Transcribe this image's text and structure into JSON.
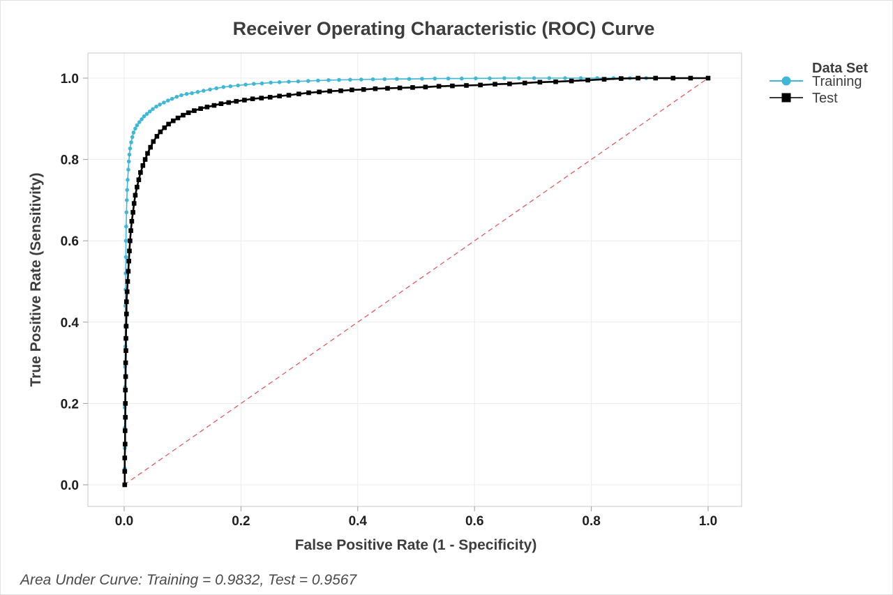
{
  "chart_data": {
    "type": "line",
    "title": "Receiver Operating Characteristic (ROC) Curve",
    "xlabel": "False Positive Rate (1 - Specificity)",
    "ylabel": "True Positive Rate (Sensitivity)",
    "xlim": [
      0,
      1
    ],
    "ylim": [
      0,
      1
    ],
    "grid": true,
    "xticks": {
      "values": [
        0.0,
        0.2,
        0.4,
        0.6,
        0.8,
        1.0
      ],
      "labels": [
        "0.0",
        "0.2",
        "0.4",
        "0.6",
        "0.8",
        "1.0"
      ]
    },
    "yticks": {
      "values": [
        0.0,
        0.2,
        0.4,
        0.6,
        0.8,
        1.0
      ],
      "labels": [
        "0.0",
        "0.2",
        "0.4",
        "0.6",
        "0.8",
        "1.0"
      ]
    },
    "legend": {
      "title": "Data Set",
      "position": "right-top"
    },
    "reference_line": {
      "name": "chance-diagonal",
      "from": [
        0,
        0
      ],
      "to": [
        1,
        1
      ],
      "style": "dashed",
      "color": "#E05C5C"
    },
    "footnote": "Area Under Curve: Training = 0.9832, Test = 0.9567",
    "series": [
      {
        "name": "Training",
        "marker": "circle",
        "color": "#41B7D8",
        "auc": 0.9832,
        "points": [
          [
            0.0005,
            0.0
          ],
          [
            0.001,
            0.04
          ],
          [
            0.001,
            0.09
          ],
          [
            0.001,
            0.14
          ],
          [
            0.001,
            0.19
          ],
          [
            0.0015,
            0.24
          ],
          [
            0.0015,
            0.29
          ],
          [
            0.002,
            0.34
          ],
          [
            0.002,
            0.39
          ],
          [
            0.002,
            0.44
          ],
          [
            0.0025,
            0.48
          ],
          [
            0.0025,
            0.52
          ],
          [
            0.003,
            0.56
          ],
          [
            0.003,
            0.6
          ],
          [
            0.0035,
            0.635
          ],
          [
            0.004,
            0.67
          ],
          [
            0.0045,
            0.7
          ],
          [
            0.005,
            0.725
          ],
          [
            0.006,
            0.75
          ],
          [
            0.007,
            0.775
          ],
          [
            0.008,
            0.795
          ],
          [
            0.009,
            0.812
          ],
          [
            0.01,
            0.827
          ],
          [
            0.012,
            0.842
          ],
          [
            0.014,
            0.855
          ],
          [
            0.016,
            0.866
          ],
          [
            0.019,
            0.876
          ],
          [
            0.022,
            0.884
          ],
          [
            0.026,
            0.892
          ],
          [
            0.03,
            0.899
          ],
          [
            0.034,
            0.906
          ],
          [
            0.039,
            0.912
          ],
          [
            0.044,
            0.918
          ],
          [
            0.049,
            0.924
          ],
          [
            0.055,
            0.93
          ],
          [
            0.061,
            0.935
          ],
          [
            0.068,
            0.94
          ],
          [
            0.075,
            0.945
          ],
          [
            0.082,
            0.949
          ],
          [
            0.09,
            0.954
          ],
          [
            0.098,
            0.958
          ],
          [
            0.107,
            0.961
          ],
          [
            0.116,
            0.963
          ],
          [
            0.126,
            0.966
          ],
          [
            0.136,
            0.969
          ],
          [
            0.147,
            0.972
          ],
          [
            0.158,
            0.975
          ],
          [
            0.17,
            0.978
          ],
          [
            0.182,
            0.98
          ],
          [
            0.195,
            0.982
          ],
          [
            0.208,
            0.984
          ],
          [
            0.222,
            0.986
          ],
          [
            0.236,
            0.987
          ],
          [
            0.251,
            0.989
          ],
          [
            0.266,
            0.99
          ],
          [
            0.282,
            0.991
          ],
          [
            0.298,
            0.992
          ],
          [
            0.315,
            0.993
          ],
          [
            0.332,
            0.994
          ],
          [
            0.35,
            0.995
          ],
          [
            0.368,
            0.9955
          ],
          [
            0.387,
            0.996
          ],
          [
            0.406,
            0.9965
          ],
          [
            0.426,
            0.997
          ],
          [
            0.446,
            0.9975
          ],
          [
            0.467,
            0.998
          ],
          [
            0.488,
            0.998
          ],
          [
            0.51,
            0.9985
          ],
          [
            0.532,
            0.999
          ],
          [
            0.555,
            0.999
          ],
          [
            0.578,
            0.999
          ],
          [
            0.602,
            0.9995
          ],
          [
            0.626,
            0.9995
          ],
          [
            0.651,
            1.0
          ],
          [
            0.676,
            1.0
          ],
          [
            0.702,
            1.0
          ],
          [
            0.728,
            1.0
          ],
          [
            0.755,
            1.0
          ],
          [
            0.782,
            1.0
          ],
          [
            0.81,
            1.0
          ],
          [
            0.838,
            1.0
          ],
          [
            0.866,
            1.0
          ],
          [
            0.894,
            1.0
          ]
        ]
      },
      {
        "name": "Test",
        "marker": "square",
        "color": "#000000",
        "auc": 0.9567,
        "points": [
          [
            0.001,
            0.0
          ],
          [
            0.001,
            0.033
          ],
          [
            0.001,
            0.066
          ],
          [
            0.0015,
            0.1
          ],
          [
            0.0015,
            0.133
          ],
          [
            0.002,
            0.166
          ],
          [
            0.002,
            0.2
          ],
          [
            0.002,
            0.233
          ],
          [
            0.0025,
            0.266
          ],
          [
            0.0025,
            0.3
          ],
          [
            0.003,
            0.33
          ],
          [
            0.003,
            0.36
          ],
          [
            0.0035,
            0.39
          ],
          [
            0.004,
            0.42
          ],
          [
            0.004,
            0.45
          ],
          [
            0.005,
            0.475
          ],
          [
            0.006,
            0.5
          ],
          [
            0.007,
            0.525
          ],
          [
            0.008,
            0.55
          ],
          [
            0.009,
            0.575
          ],
          [
            0.01,
            0.6
          ],
          [
            0.0115,
            0.625
          ],
          [
            0.013,
            0.648
          ],
          [
            0.015,
            0.67
          ],
          [
            0.017,
            0.692
          ],
          [
            0.019,
            0.712
          ],
          [
            0.022,
            0.732
          ],
          [
            0.025,
            0.75
          ],
          [
            0.028,
            0.768
          ],
          [
            0.032,
            0.785
          ],
          [
            0.036,
            0.8
          ],
          [
            0.04,
            0.815
          ],
          [
            0.045,
            0.83
          ],
          [
            0.05,
            0.844
          ],
          [
            0.056,
            0.857
          ],
          [
            0.062,
            0.868
          ],
          [
            0.069,
            0.878
          ],
          [
            0.076,
            0.887
          ],
          [
            0.084,
            0.895
          ],
          [
            0.092,
            0.902
          ],
          [
            0.101,
            0.909
          ],
          [
            0.11,
            0.915
          ],
          [
            0.12,
            0.92
          ],
          [
            0.131,
            0.925
          ],
          [
            0.142,
            0.929
          ],
          [
            0.154,
            0.933
          ],
          [
            0.166,
            0.937
          ],
          [
            0.179,
            0.94
          ],
          [
            0.192,
            0.943
          ],
          [
            0.206,
            0.946
          ],
          [
            0.22,
            0.949
          ],
          [
            0.235,
            0.951
          ],
          [
            0.25,
            0.953
          ],
          [
            0.266,
            0.956
          ],
          [
            0.282,
            0.958
          ],
          [
            0.299,
            0.961
          ],
          [
            0.316,
            0.964
          ],
          [
            0.334,
            0.966
          ],
          [
            0.352,
            0.968
          ],
          [
            0.371,
            0.969
          ],
          [
            0.39,
            0.971
          ],
          [
            0.41,
            0.972
          ],
          [
            0.43,
            0.974
          ],
          [
            0.451,
            0.975
          ],
          [
            0.472,
            0.976
          ],
          [
            0.494,
            0.977
          ],
          [
            0.516,
            0.978
          ],
          [
            0.539,
            0.98
          ],
          [
            0.562,
            0.981
          ],
          [
            0.586,
            0.982
          ],
          [
            0.61,
            0.983
          ],
          [
            0.635,
            0.985
          ],
          [
            0.66,
            0.986
          ],
          [
            0.686,
            0.988
          ],
          [
            0.712,
            0.99
          ],
          [
            0.739,
            0.991
          ],
          [
            0.766,
            0.993
          ],
          [
            0.794,
            0.995
          ],
          [
            0.822,
            0.997
          ],
          [
            0.851,
            0.999
          ],
          [
            0.88,
            1.0
          ],
          [
            0.91,
            1.0
          ],
          [
            0.94,
            1.0
          ],
          [
            0.97,
            1.0
          ],
          [
            1.0,
            1.0
          ]
        ]
      }
    ]
  },
  "colors": {
    "training": "#41B7D8",
    "test": "#000000",
    "diagonal": "#E05C5C",
    "grid": "#ECECEC",
    "plot_border": "#C9C9C9",
    "text": "#3D3D3D"
  }
}
